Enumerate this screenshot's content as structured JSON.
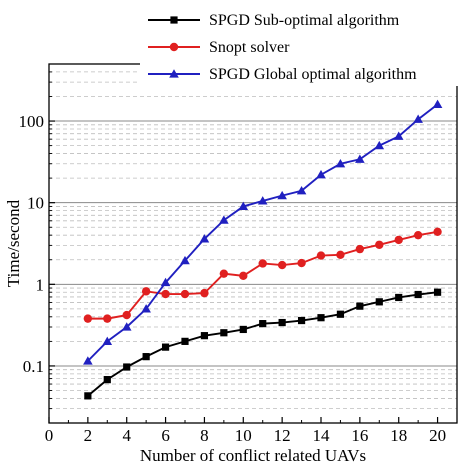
{
  "chart_data": {
    "type": "line",
    "xlabel": "Number of conflict related UAVs",
    "ylabel": "Time/second",
    "y_scale": "log",
    "xlim": [
      0,
      21
    ],
    "ylim": [
      0.02,
      500
    ],
    "x_ticks": [
      0,
      2,
      4,
      6,
      8,
      10,
      12,
      14,
      16,
      18,
      20
    ],
    "y_ticks": [
      0.1,
      1,
      10,
      100
    ],
    "y_tick_labels": [
      "0.1",
      "1",
      "10",
      "100"
    ],
    "grid": "horizontal dashed minor, solid major",
    "legend_position": "top",
    "x": [
      2,
      3,
      4,
      5,
      6,
      7,
      8,
      9,
      10,
      11,
      12,
      13,
      14,
      15,
      16,
      17,
      18,
      19,
      20
    ],
    "series": [
      {
        "name": "SPGD Sub-optimal algorithm",
        "color": "#000000",
        "marker": "square",
        "values": [
          0.043,
          0.068,
          0.097,
          0.13,
          0.17,
          0.2,
          0.235,
          0.255,
          0.28,
          0.33,
          0.34,
          0.36,
          0.39,
          0.43,
          0.54,
          0.61,
          0.69,
          0.75,
          0.8
        ]
      },
      {
        "name": "Snopt solver",
        "color": "#e02020",
        "marker": "circle",
        "values": [
          0.38,
          0.38,
          0.42,
          0.82,
          0.76,
          0.76,
          0.78,
          1.35,
          1.27,
          1.8,
          1.72,
          1.82,
          2.25,
          2.3,
          2.7,
          3.05,
          3.5,
          4.0,
          4.4
        ]
      },
      {
        "name": "SPGD Global optimal algorithm",
        "color": "#2020c0",
        "marker": "triangle",
        "values": [
          0.115,
          0.2,
          0.3,
          0.5,
          1.05,
          1.95,
          3.6,
          6.1,
          9.0,
          10.5,
          12.2,
          14.0,
          22.0,
          30.0,
          34.0,
          50.0,
          65.0,
          105.0,
          160.0
        ]
      }
    ]
  }
}
